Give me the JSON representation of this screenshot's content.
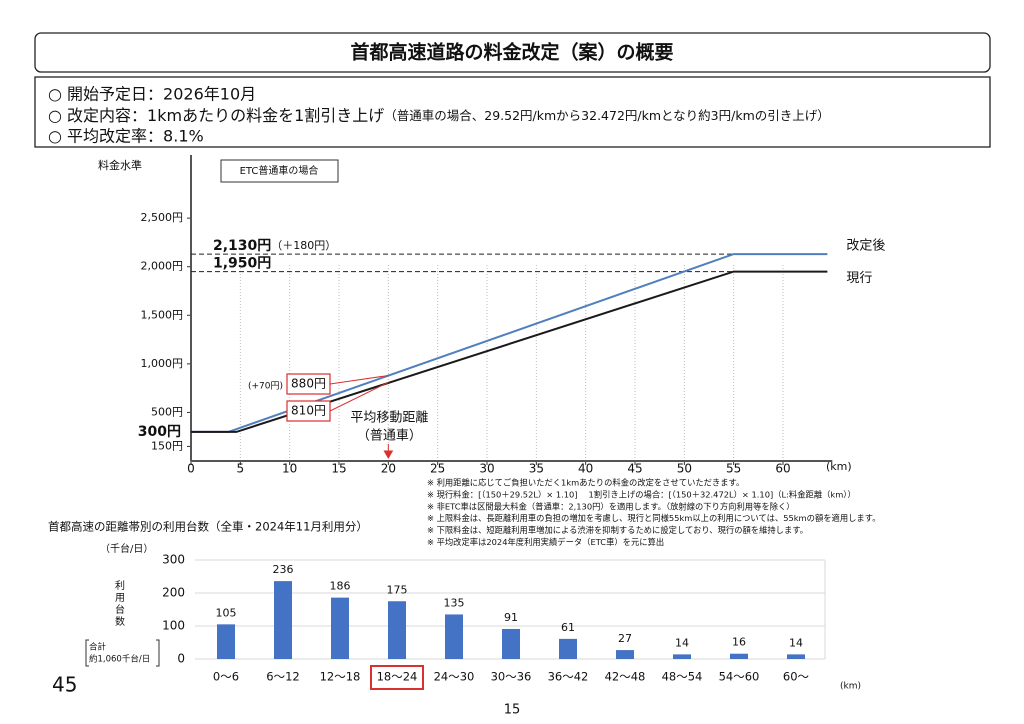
{
  "title": "首都高速道路の料金改定（案）の概要",
  "bullets": [
    {
      "text": "○ 開始予定日：2026年10月"
    },
    {
      "text": "○ 改定内容：1kmあたりの料金を1割引き上げ",
      "note": "（普通車の場合、29.52円/kmから32.472円/kmとなり約3円/kmの引き上げ）"
    },
    {
      "text": "○ 平均改定率：8.1%"
    }
  ],
  "notes": [
    "※ 利用距離に応じてご負担いただく1kmあたりの料金の改定をさせていただきます。",
    "※ 現行料金：[（150＋29.52L）× 1.10]　 1割引き上げの場合：[（150＋32.472L）× 1.10]（L:料金距離（km））",
    "※ 非ETC車は区間最大料金（普通車：2,130円）を適用します。（放射線の下り方向利用等を除く）",
    "※ 上限料金は、長距離利用車の負担の増加を考慮し、現行と同様55km以上の利用については、55kmの額を適用します。",
    "※ 下限料金は、短距離利用車増加による渋滞を抑制するために設定しており、現行の額を維持します。",
    "※ 平均改定率は2024年度利用実績データ（ETC車）を元に算出"
  ],
  "page_label": "45",
  "slide_number": "15",
  "chart_data": [
    {
      "type": "line",
      "y_label": "料金水準",
      "box_label": "ETC普通車の場合",
      "x_unit": "(km)",
      "xlim": [
        0,
        65
      ],
      "xticks": [
        0,
        5,
        10,
        15,
        20,
        25,
        30,
        35,
        40,
        45,
        50,
        55,
        60
      ],
      "ylim": [
        0,
        3150
      ],
      "yticks": [
        {
          "value": 150,
          "label": "150円"
        },
        {
          "value": 500,
          "label": "500円"
        },
        {
          "value": 1000,
          "label": "1,000円"
        },
        {
          "value": 1500,
          "label": "1,500円"
        },
        {
          "value": 2000,
          "label": "2,000円"
        },
        {
          "value": 2500,
          "label": "2,500円"
        }
      ],
      "grid": true,
      "series": [
        {
          "name": "改定後",
          "color": "#4f7fbd",
          "x": [
            0,
            3.8,
            55,
            64.5
          ],
          "values": [
            300,
            300,
            2130,
            2130
          ]
        },
        {
          "name": "現行",
          "color": "#1a1a1a",
          "x": [
            0,
            4.6,
            55,
            64.5
          ],
          "values": [
            300,
            300,
            1950,
            1950
          ]
        }
      ],
      "reference_lines": [
        {
          "value": 2130,
          "label": "2,130円",
          "note": "（＋180円）"
        },
        {
          "value": 1950,
          "label": "1,950円"
        }
      ],
      "base_fare": {
        "value": 300,
        "label": "300円"
      },
      "point_labels": [
        {
          "x": 20,
          "value": 880,
          "label": "880円"
        },
        {
          "x": 20,
          "value": 810,
          "label": "810円"
        }
      ],
      "difference_label": "(+70円)",
      "average_distance": {
        "x": 20,
        "label": [
          "平均移動距離",
          "（普通車）"
        ]
      }
    },
    {
      "type": "bar",
      "title": "首都高速の距離帯別の利用台数（全車・2024年11月利用分）",
      "y_unit": "（千台/日）",
      "y_label": [
        "利",
        "用",
        "台",
        "数"
      ],
      "total_label": [
        "合計",
        "約1,060千台/日"
      ],
      "x_unit": "(km)",
      "categories": [
        "0～6",
        "6～12",
        "12～18",
        "18～24",
        "24～30",
        "30～36",
        "36～42",
        "42～48",
        "48～54",
        "54～60",
        "60～"
      ],
      "values": [
        105,
        236,
        186,
        175,
        135,
        91,
        61,
        27,
        14,
        16,
        14
      ],
      "color": "#4472c4",
      "ylim": [
        0,
        300
      ],
      "yticks": [
        0,
        100,
        200,
        300
      ],
      "grid": true,
      "highlight_index": 3
    }
  ]
}
